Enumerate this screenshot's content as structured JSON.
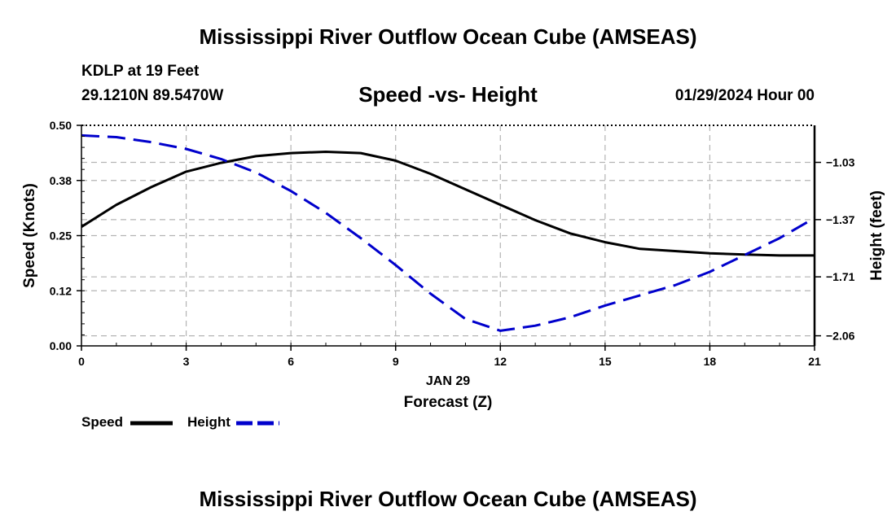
{
  "header": {
    "title": "Mississippi River Outflow Ocean Cube (AMSEAS)",
    "station": "KDLP at 19 Feet",
    "coords": "29.1210N  89.5470W",
    "subtitle": "Speed -vs- Height",
    "datehour": "01/29/2024 Hour 00"
  },
  "footer": {
    "title": "Mississippi River Outflow Ocean Cube (AMSEAS)"
  },
  "legend": {
    "speed_label": "Speed",
    "height_label": "Height"
  },
  "colors": {
    "speed": "#000000",
    "height": "#0000cc",
    "grid": "#b4b4b4"
  },
  "chart_data": {
    "type": "line",
    "title": "Speed -vs- Height",
    "xlabel": "Forecast (Z)",
    "xsublabel": "JAN 29",
    "ylabel": "Speed (Knots)",
    "y2label": "Height (feet)",
    "xlim": [
      0,
      21
    ],
    "ylim": [
      0,
      0.5
    ],
    "y2lim": [
      -2.12,
      -0.81
    ],
    "x_ticks": [
      0,
      3,
      6,
      9,
      12,
      15,
      18,
      21
    ],
    "x_tick_labels": [
      "0",
      "3",
      "6",
      "9",
      "12",
      "15",
      "18",
      "21"
    ],
    "y_ticks": [
      0,
      0.125,
      0.25,
      0.375,
      0.5
    ],
    "y_tick_labels": [
      "0.00",
      "0.12",
      "0.25",
      "0.38",
      "0.50"
    ],
    "y2_ticks": [
      -2.06,
      -1.71,
      -1.37,
      -1.03
    ],
    "y2_tick_labels": [
      "-2.06",
      "-1.71",
      "-1.37",
      "-1.03"
    ],
    "grid": true,
    "series": [
      {
        "name": "Speed",
        "axis": "left",
        "style": "solid",
        "x": [
          0,
          1,
          2,
          3,
          4,
          5,
          6,
          7,
          8,
          9,
          10,
          11,
          12,
          13,
          14,
          15,
          16,
          17,
          18,
          19,
          20,
          21
        ],
        "values": [
          0.27,
          0.32,
          0.36,
          0.395,
          0.415,
          0.43,
          0.437,
          0.44,
          0.437,
          0.42,
          0.39,
          0.355,
          0.32,
          0.285,
          0.255,
          0.235,
          0.22,
          0.215,
          0.21,
          0.207,
          0.205,
          0.205
        ]
      },
      {
        "name": "Height",
        "axis": "right",
        "style": "dashed",
        "x": [
          0,
          1,
          2,
          3,
          4,
          5,
          6,
          7,
          8,
          9,
          10,
          11,
          12,
          13,
          14,
          15,
          16,
          17,
          18,
          19,
          20,
          21
        ],
        "values": [
          -0.87,
          -0.88,
          -0.91,
          -0.95,
          -1.01,
          -1.09,
          -1.2,
          -1.33,
          -1.48,
          -1.64,
          -1.81,
          -1.96,
          -2.03,
          -2.0,
          -1.95,
          -1.88,
          -1.82,
          -1.76,
          -1.68,
          -1.58,
          -1.48,
          -1.36
        ]
      }
    ]
  }
}
